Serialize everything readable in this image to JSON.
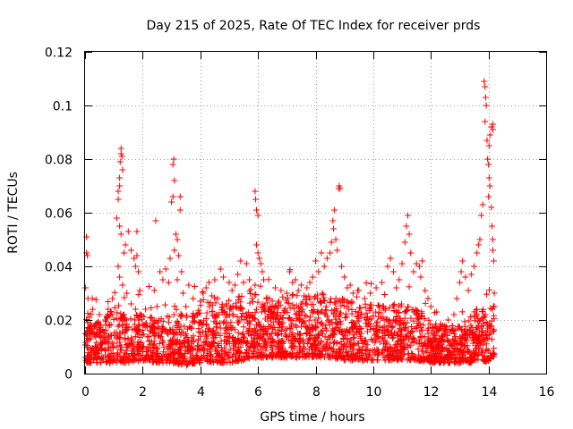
{
  "chart_data": {
    "type": "scatter",
    "title": "Day 215 of 2025, Rate Of TEC Index for receiver prds",
    "xlabel": "GPS time / hours",
    "ylabel": "ROTI / TECUs",
    "xlim": [
      0,
      16
    ],
    "ylim": [
      0,
      0.12
    ],
    "xticks": [
      0,
      2,
      4,
      6,
      8,
      10,
      12,
      14,
      16
    ],
    "xtick_labels": [
      "0",
      "2",
      "4",
      "6",
      "8",
      "10",
      "12",
      "14",
      "16"
    ],
    "yticks": [
      0,
      0.02,
      0.04,
      0.06,
      0.08,
      0.1,
      0.12
    ],
    "ytick_labels": [
      "0",
      "0.02",
      "0.04",
      "0.06",
      "0.08",
      "0.1",
      "0.12"
    ],
    "grid": true,
    "marker": "+",
    "color": "#ff0000",
    "series": [
      {
        "name": "ROTI",
        "points": [
          [
            0.05,
            0.051
          ],
          [
            0.05,
            0.045
          ],
          [
            0.08,
            0.044
          ],
          [
            0.02,
            0.032
          ],
          [
            0.1,
            0.028
          ],
          [
            0.15,
            0.021
          ],
          [
            0.25,
            0.028
          ],
          [
            0.35,
            0.018
          ],
          [
            0.5,
            0.022
          ],
          [
            0.55,
            0.016
          ],
          [
            0.7,
            0.02
          ],
          [
            0.8,
            0.024
          ],
          [
            0.95,
            0.028
          ],
          [
            1.1,
            0.058
          ],
          [
            1.15,
            0.065
          ],
          [
            1.15,
            0.068
          ],
          [
            1.2,
            0.07
          ],
          [
            1.2,
            0.073
          ],
          [
            1.22,
            0.079
          ],
          [
            1.25,
            0.082
          ],
          [
            1.25,
            0.084
          ],
          [
            1.28,
            0.081
          ],
          [
            1.3,
            0.076
          ],
          [
            1.2,
            0.055
          ],
          [
            1.25,
            0.052
          ],
          [
            1.15,
            0.04
          ],
          [
            1.2,
            0.036
          ],
          [
            1.3,
            0.033
          ],
          [
            1.35,
            0.045
          ],
          [
            1.4,
            0.048
          ],
          [
            1.5,
            0.053
          ],
          [
            1.6,
            0.046
          ],
          [
            1.7,
            0.043
          ],
          [
            1.8,
            0.044
          ],
          [
            1.75,
            0.04
          ],
          [
            1.85,
            0.038
          ],
          [
            1.8,
            0.053
          ],
          [
            1.9,
            0.031
          ],
          [
            1.6,
            0.026
          ],
          [
            1.75,
            0.024
          ],
          [
            1.9,
            0.022
          ],
          [
            1.45,
            0.03
          ],
          [
            2.1,
            0.024
          ],
          [
            2.3,
            0.021
          ],
          [
            2.5,
            0.025
          ],
          [
            2.45,
            0.057
          ],
          [
            2.6,
            0.038
          ],
          [
            2.7,
            0.035
          ],
          [
            2.8,
            0.039
          ],
          [
            2.9,
            0.034
          ],
          [
            2.95,
            0.043
          ],
          [
            3.0,
            0.064
          ],
          [
            3.05,
            0.066
          ],
          [
            3.1,
            0.072
          ],
          [
            3.05,
            0.078
          ],
          [
            3.08,
            0.08
          ],
          [
            3.15,
            0.052
          ],
          [
            3.2,
            0.05
          ],
          [
            3.25,
            0.044
          ],
          [
            3.1,
            0.046
          ],
          [
            3.2,
            0.035
          ],
          [
            3.3,
            0.061
          ],
          [
            3.3,
            0.066
          ],
          [
            3.35,
            0.038
          ],
          [
            3.4,
            0.03
          ],
          [
            3.5,
            0.025
          ],
          [
            3.6,
            0.033
          ],
          [
            3.75,
            0.028
          ],
          [
            3.9,
            0.022
          ],
          [
            4.0,
            0.027
          ],
          [
            4.1,
            0.03
          ],
          [
            4.2,
            0.032
          ],
          [
            4.3,
            0.034
          ],
          [
            4.4,
            0.029
          ],
          [
            4.5,
            0.035
          ],
          [
            4.6,
            0.028
          ],
          [
            4.7,
            0.039
          ],
          [
            4.8,
            0.036
          ],
          [
            4.9,
            0.026
          ],
          [
            5.0,
            0.034
          ],
          [
            5.1,
            0.031
          ],
          [
            5.2,
            0.033
          ],
          [
            5.3,
            0.037
          ],
          [
            5.4,
            0.042
          ],
          [
            5.5,
            0.034
          ],
          [
            5.6,
            0.041
          ],
          [
            5.7,
            0.035
          ],
          [
            5.8,
            0.028
          ],
          [
            5.9,
            0.033
          ],
          [
            5.9,
            0.068
          ],
          [
            5.92,
            0.065
          ],
          [
            5.95,
            0.061
          ],
          [
            6.0,
            0.059
          ],
          [
            5.95,
            0.048
          ],
          [
            6.0,
            0.045
          ],
          [
            6.05,
            0.043
          ],
          [
            6.1,
            0.041
          ],
          [
            6.15,
            0.038
          ],
          [
            6.2,
            0.035
          ],
          [
            6.4,
            0.028
          ],
          [
            6.6,
            0.032
          ],
          [
            6.8,
            0.031
          ],
          [
            7.0,
            0.03
          ],
          [
            7.1,
            0.038
          ],
          [
            7.2,
            0.034
          ],
          [
            7.3,
            0.035
          ],
          [
            7.4,
            0.031
          ],
          [
            7.5,
            0.033
          ],
          [
            7.6,
            0.029
          ],
          [
            7.7,
            0.032
          ],
          [
            7.8,
            0.034
          ],
          [
            7.9,
            0.036
          ],
          [
            8.0,
            0.042
          ],
          [
            8.1,
            0.038
          ],
          [
            8.2,
            0.045
          ],
          [
            8.3,
            0.04
          ],
          [
            8.4,
            0.043
          ],
          [
            8.5,
            0.045
          ],
          [
            8.55,
            0.049
          ],
          [
            8.6,
            0.057
          ],
          [
            8.62,
            0.054
          ],
          [
            8.65,
            0.061
          ],
          [
            8.7,
            0.05
          ],
          [
            8.75,
            0.046
          ],
          [
            8.8,
            0.069
          ],
          [
            8.82,
            0.07
          ],
          [
            8.85,
            0.069
          ],
          [
            8.9,
            0.04
          ],
          [
            9.0,
            0.036
          ],
          [
            9.1,
            0.032
          ],
          [
            9.2,
            0.033
          ],
          [
            9.3,
            0.03
          ],
          [
            9.5,
            0.031
          ],
          [
            9.7,
            0.028
          ],
          [
            9.9,
            0.03
          ],
          [
            10.1,
            0.032
          ],
          [
            10.3,
            0.034
          ],
          [
            10.5,
            0.04
          ],
          [
            10.6,
            0.043
          ],
          [
            10.7,
            0.038
          ],
          [
            10.8,
            0.032
          ],
          [
            10.9,
            0.035
          ],
          [
            11.0,
            0.041
          ],
          [
            11.1,
            0.049
          ],
          [
            11.15,
            0.055
          ],
          [
            11.2,
            0.059
          ],
          [
            11.25,
            0.052
          ],
          [
            11.3,
            0.045
          ],
          [
            11.4,
            0.038
          ],
          [
            11.5,
            0.041
          ],
          [
            11.6,
            0.04
          ],
          [
            11.65,
            0.036
          ],
          [
            11.7,
            0.042
          ],
          [
            11.8,
            0.031
          ],
          [
            11.9,
            0.028
          ],
          [
            12.0,
            0.025
          ],
          [
            12.2,
            0.023
          ],
          [
            12.4,
            0.018
          ],
          [
            12.6,
            0.02
          ],
          [
            12.8,
            0.022
          ],
          [
            12.9,
            0.028
          ],
          [
            13.0,
            0.034
          ],
          [
            13.05,
            0.038
          ],
          [
            13.1,
            0.042
          ],
          [
            13.2,
            0.036
          ],
          [
            13.3,
            0.031
          ],
          [
            13.4,
            0.037
          ],
          [
            13.5,
            0.04
          ],
          [
            13.6,
            0.045
          ],
          [
            13.65,
            0.048
          ],
          [
            13.7,
            0.05
          ],
          [
            13.75,
            0.059
          ],
          [
            13.8,
            0.063
          ],
          [
            13.85,
            0.109
          ],
          [
            13.88,
            0.107
          ],
          [
            13.9,
            0.103
          ],
          [
            13.92,
            0.1
          ],
          [
            13.88,
            0.094
          ],
          [
            13.95,
            0.087
          ],
          [
            13.97,
            0.08
          ],
          [
            14.0,
            0.078
          ],
          [
            14.02,
            0.073
          ],
          [
            14.05,
            0.07
          ],
          [
            14.0,
            0.066
          ],
          [
            14.02,
            0.085
          ],
          [
            14.05,
            0.089
          ],
          [
            14.1,
            0.092
          ],
          [
            14.15,
            0.093
          ],
          [
            14.15,
            0.091
          ],
          [
            14.1,
            0.062
          ],
          [
            14.12,
            0.055
          ],
          [
            14.15,
            0.05
          ],
          [
            14.15,
            0.046
          ],
          [
            14.18,
            0.042
          ],
          [
            14.2,
            0.03
          ],
          [
            14.2,
            0.025
          ]
        ],
        "band": [
          [
            0.0,
            0.004,
            0.024
          ],
          [
            0.5,
            0.004,
            0.02
          ],
          [
            1.0,
            0.004,
            0.024
          ],
          [
            1.5,
            0.004,
            0.022
          ],
          [
            2.0,
            0.005,
            0.022
          ],
          [
            2.5,
            0.004,
            0.02
          ],
          [
            3.0,
            0.004,
            0.022
          ],
          [
            3.5,
            0.003,
            0.022
          ],
          [
            4.0,
            0.004,
            0.024
          ],
          [
            4.5,
            0.004,
            0.026
          ],
          [
            5.0,
            0.004,
            0.028
          ],
          [
            5.5,
            0.005,
            0.03
          ],
          [
            6.0,
            0.006,
            0.03
          ],
          [
            6.5,
            0.006,
            0.028
          ],
          [
            7.0,
            0.006,
            0.03
          ],
          [
            7.5,
            0.006,
            0.03
          ],
          [
            8.0,
            0.006,
            0.03
          ],
          [
            8.5,
            0.006,
            0.03
          ],
          [
            9.0,
            0.005,
            0.028
          ],
          [
            9.5,
            0.005,
            0.026
          ],
          [
            10.0,
            0.005,
            0.026
          ],
          [
            10.5,
            0.005,
            0.026
          ],
          [
            11.0,
            0.005,
            0.026
          ],
          [
            11.5,
            0.005,
            0.024
          ],
          [
            12.0,
            0.004,
            0.02
          ],
          [
            12.5,
            0.004,
            0.018
          ],
          [
            13.0,
            0.004,
            0.018
          ],
          [
            13.5,
            0.004,
            0.024
          ],
          [
            14.2,
            0.005,
            0.026
          ]
        ],
        "band_count": 2600,
        "seed": 215
      }
    ]
  }
}
